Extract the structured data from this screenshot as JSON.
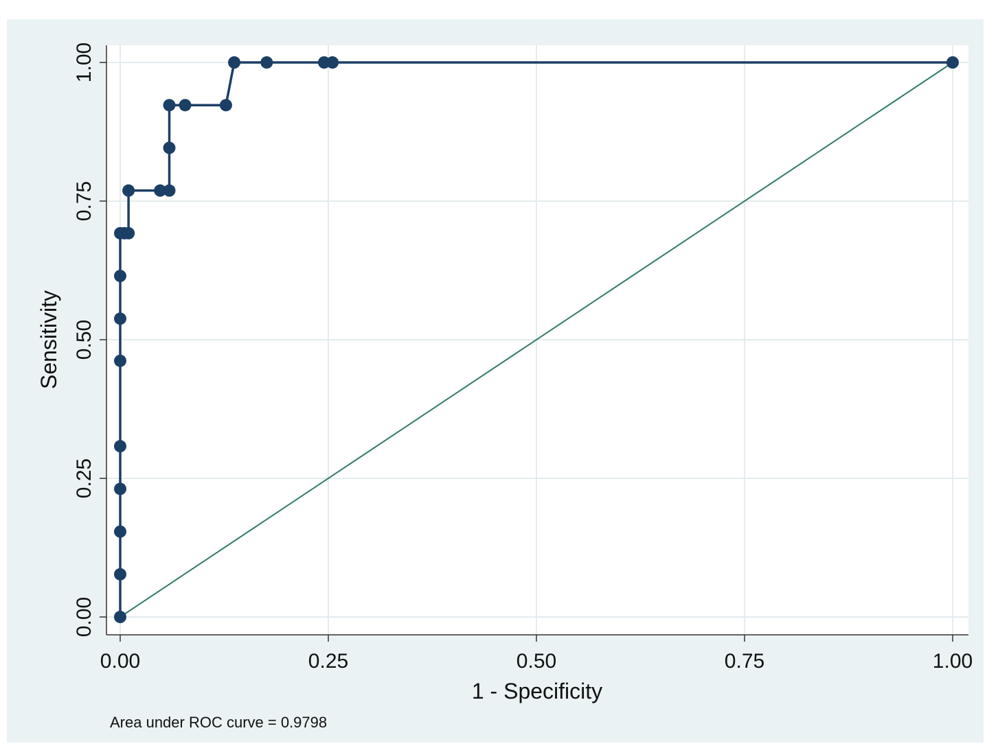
{
  "chart_data": {
    "type": "line",
    "xlabel": "1 - Specificity",
    "ylabel": "Sensitivity",
    "xlim": [
      0,
      1
    ],
    "ylim": [
      0,
      1
    ],
    "x_ticks": [
      "0.00",
      "0.25",
      "0.50",
      "0.75",
      "1.00"
    ],
    "y_ticks": [
      "0.00",
      "0.25",
      "0.50",
      "0.75",
      "1.00"
    ],
    "grid": true,
    "legend": "none",
    "note": "Area under ROC curve = 0.9798",
    "colors": {
      "roc": "#1c3f66",
      "reference": "#2f7a6a",
      "background": "#eaf2f3",
      "grid": "#ffffff"
    },
    "series": [
      {
        "points": [
          [
            0.0,
            0.0
          ],
          [
            0.0,
            0.077
          ],
          [
            0.0,
            0.154
          ],
          [
            0.0,
            0.231
          ],
          [
            0.0,
            0.308
          ],
          [
            0.0,
            0.462
          ],
          [
            0.0,
            0.538
          ],
          [
            0.0,
            0.615
          ],
          [
            0.0,
            0.692
          ],
          [
            0.005,
            0.692
          ],
          [
            0.01,
            0.692
          ],
          [
            0.01,
            0.769
          ],
          [
            0.048,
            0.769
          ],
          [
            0.059,
            0.769
          ],
          [
            0.059,
            0.846
          ],
          [
            0.059,
            0.923
          ],
          [
            0.078,
            0.923
          ],
          [
            0.127,
            0.923
          ],
          [
            0.137,
            1.0
          ],
          [
            0.176,
            1.0
          ],
          [
            0.245,
            1.0
          ],
          [
            0.255,
            1.0
          ],
          [
            1.0,
            1.0
          ]
        ]
      },
      {
        "points": [
          [
            0,
            0
          ],
          [
            1,
            1
          ]
        ]
      }
    ]
  }
}
